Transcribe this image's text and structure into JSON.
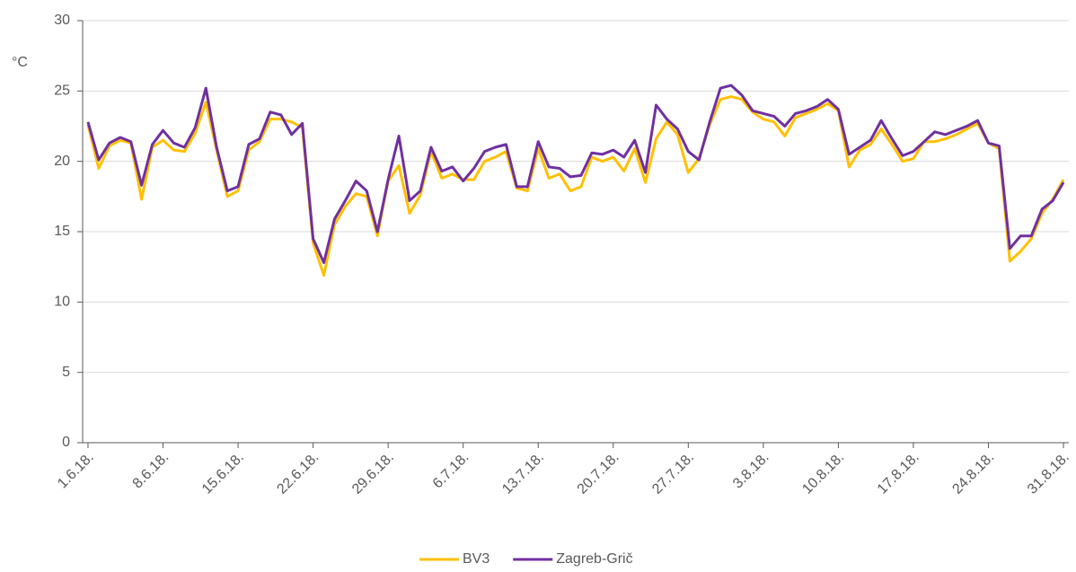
{
  "chart_data": {
    "type": "line",
    "y_label": "°C",
    "categories": [
      "1.6.18.",
      null,
      null,
      null,
      null,
      null,
      null,
      "8.6.18.",
      null,
      null,
      null,
      null,
      null,
      null,
      "15.6.18.",
      null,
      null,
      null,
      null,
      null,
      null,
      "22.6.18.",
      null,
      null,
      null,
      null,
      null,
      null,
      "29.6.18.",
      null,
      null,
      null,
      null,
      null,
      null,
      "6.7.18.",
      null,
      null,
      null,
      null,
      null,
      null,
      "13.7.18.",
      null,
      null,
      null,
      null,
      null,
      null,
      "20.7.18.",
      null,
      null,
      null,
      null,
      null,
      null,
      "27.7.18.",
      null,
      null,
      null,
      null,
      null,
      null,
      "3.8.18.",
      null,
      null,
      null,
      null,
      null,
      null,
      "10.8.18.",
      null,
      null,
      null,
      null,
      null,
      null,
      "17.8.18.",
      null,
      null,
      null,
      null,
      null,
      null,
      "24.8.18.",
      null,
      null,
      null,
      null,
      null,
      null,
      "31.8.18."
    ],
    "series": [
      {
        "name": "BV3",
        "color": "#ffc000",
        "values": [
          22.6,
          19.5,
          21.1,
          21.5,
          21.3,
          17.3,
          21.0,
          21.5,
          20.8,
          20.7,
          22.0,
          24.2,
          20.8,
          17.5,
          17.9,
          20.8,
          21.4,
          23.0,
          23.0,
          22.8,
          22.4,
          14.2,
          11.9,
          15.5,
          16.8,
          17.7,
          17.5,
          14.7,
          18.6,
          19.7,
          16.3,
          17.6,
          20.7,
          18.8,
          19.1,
          18.7,
          18.7,
          20.0,
          20.3,
          20.7,
          18.1,
          17.9,
          20.9,
          18.8,
          19.1,
          17.9,
          18.2,
          20.3,
          20.0,
          20.3,
          19.3,
          20.9,
          18.5,
          21.6,
          22.8,
          21.9,
          19.2,
          20.2,
          22.6,
          24.4,
          24.6,
          24.4,
          23.5,
          23.0,
          22.8,
          21.8,
          23.1,
          23.4,
          23.7,
          24.1,
          23.6,
          19.6,
          20.8,
          21.2,
          22.3,
          21.2,
          20.0,
          20.2,
          21.4,
          21.4,
          21.6,
          21.9,
          22.3,
          22.7,
          21.3,
          20.9,
          12.9,
          13.6,
          14.5,
          16.3,
          17.3,
          18.7
        ]
      },
      {
        "name": "Zagreb-Grič",
        "color": "#7030a0",
        "values": [
          22.8,
          20.1,
          21.3,
          21.7,
          21.4,
          18.3,
          21.2,
          22.2,
          21.3,
          21.0,
          22.4,
          25.2,
          21.0,
          17.9,
          18.2,
          21.2,
          21.6,
          23.5,
          23.3,
          21.9,
          22.7,
          14.5,
          12.8,
          15.9,
          17.2,
          18.6,
          17.9,
          15.0,
          18.7,
          21.8,
          17.2,
          17.9,
          21.0,
          19.3,
          19.6,
          18.6,
          19.5,
          20.7,
          21.0,
          21.2,
          18.2,
          18.2,
          21.4,
          19.6,
          19.5,
          18.9,
          19.0,
          20.6,
          20.5,
          20.8,
          20.3,
          21.5,
          19.2,
          24.0,
          23.0,
          22.3,
          20.7,
          20.1,
          22.8,
          25.2,
          25.4,
          24.7,
          23.6,
          23.4,
          23.2,
          22.5,
          23.4,
          23.6,
          23.9,
          24.4,
          23.7,
          20.5,
          21.0,
          21.5,
          22.9,
          21.6,
          20.4,
          20.7,
          21.4,
          22.1,
          21.9,
          22.2,
          22.5,
          22.9,
          21.3,
          21.1,
          13.8,
          14.7,
          14.7,
          16.6,
          17.2,
          18.5
        ]
      }
    ],
    "ylim": [
      0,
      30
    ],
    "yticks": [
      0,
      5,
      10,
      15,
      20,
      25,
      30
    ],
    "grid": true,
    "legend": "bottom"
  }
}
